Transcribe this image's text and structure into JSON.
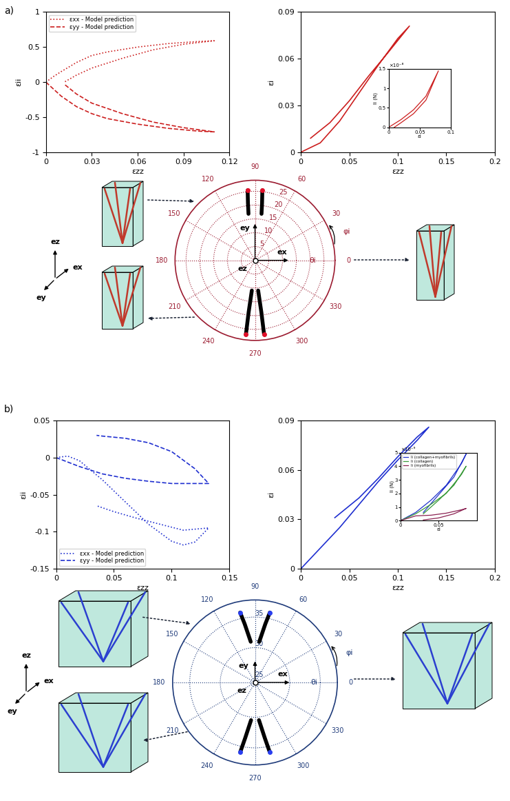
{
  "panel_labels": [
    "a)",
    "b)"
  ],
  "schematic": {
    "axis_labels": [
      "ex",
      "ey",
      "ez"
    ]
  },
  "chart_data": [
    {
      "type": "line",
      "xlabel": "εzz",
      "ylabel": "εii",
      "xlim": [
        0,
        0.12
      ],
      "xticks": [
        0,
        0.03,
        0.06,
        0.09,
        0.12
      ],
      "ylim": [
        -1,
        1
      ],
      "yticks": [
        -1,
        -0.5,
        0,
        0.5,
        1
      ],
      "legend": "upper left",
      "series": [
        {
          "name": "εxx - Model prediction",
          "color": "#cc1f1f",
          "line_style": "dotted",
          "x": [
            0,
            0.005,
            0.01,
            0.02,
            0.03,
            0.04,
            0.06,
            0.08,
            0.1,
            0.11,
            0.1,
            0.09,
            0.07,
            0.05,
            0.03,
            0.02,
            0.012
          ],
          "values": [
            0,
            0.08,
            0.15,
            0.28,
            0.38,
            0.43,
            0.5,
            0.55,
            0.58,
            0.59,
            0.565,
            0.54,
            0.46,
            0.34,
            0.2,
            0.1,
            0
          ]
        },
        {
          "name": "εyy - Model prediction",
          "color": "#cc1f1f",
          "line_style": "dashed",
          "x": [
            0,
            0.005,
            0.01,
            0.02,
            0.03,
            0.04,
            0.06,
            0.08,
            0.1,
            0.11,
            0.1,
            0.09,
            0.07,
            0.05,
            0.03,
            0.02,
            0.012
          ],
          "values": [
            0,
            -0.1,
            -0.2,
            -0.35,
            -0.45,
            -0.52,
            -0.6,
            -0.66,
            -0.7,
            -0.71,
            -0.68,
            -0.65,
            -0.57,
            -0.45,
            -0.3,
            -0.17,
            -0.03
          ]
        }
      ]
    },
    {
      "type": "line",
      "xlabel": "εzz",
      "ylabel": "εi",
      "xlim": [
        0,
        0.2
      ],
      "xticks": [
        0,
        0.05,
        0.1,
        0.15,
        0.2
      ],
      "ylim": [
        0,
        0.09
      ],
      "yticks": [
        0,
        0.03,
        0.06,
        0.09
      ],
      "series": [
        {
          "color": "#cc1f1f",
          "line_style": "solid",
          "x": [
            0,
            0.02,
            0.04,
            0.06,
            0.08,
            0.1,
            0.112,
            0.09,
            0.07,
            0.05,
            0.03,
            0.01
          ],
          "values": [
            0,
            0.006,
            0.02,
            0.038,
            0.056,
            0.073,
            0.081,
            0.064,
            0.049,
            0.033,
            0.019,
            0.009
          ]
        }
      ]
    },
    {
      "type": "line",
      "xlabel": "εi",
      "ylabel": "li (N)",
      "y_offset_label": "×10⁻⁸",
      "xlim": [
        0,
        0.1
      ],
      "xticks": [
        0,
        0.05,
        0.1
      ],
      "ylim": [
        0,
        1.5e-08
      ],
      "yticks": [
        0,
        {
          "value": 5e-09,
          "label": "0.5"
        },
        {
          "value": 1e-08,
          "label": "1"
        },
        {
          "value": 1.5e-08,
          "label": "1.5"
        }
      ],
      "series": [
        {
          "color": "#cc1f1f",
          "line_style": "solid",
          "x": [
            0,
            0.02,
            0.04,
            0.06,
            0.08,
            0.06,
            0.04,
            0.02,
            0.009
          ],
          "values": [
            0,
            2e-09,
            4.5e-09,
            8e-09,
            1.45e-08,
            7e-09,
            3.5e-09,
            1.2e-09,
            0
          ]
        }
      ]
    },
    {
      "type": "polar",
      "color": "#9b1b30",
      "grid": true,
      "xticks": [
        0,
        30,
        60,
        90,
        120,
        150,
        180,
        210,
        240,
        270,
        300,
        330
      ],
      "ylim": [
        0,
        29
      ],
      "yticks": [
        5,
        10,
        15,
        20,
        25
      ],
      "annotations": [
        "ey",
        "ex",
        "ez",
        "θi",
        "φi"
      ],
      "series": [
        {
          "type": "line",
          "color": "#000000",
          "line_style": "solid",
          "x": [
            98,
            97,
            96
          ],
          "values": [
            17,
            21,
            25.5
          ]
        },
        {
          "type": "line",
          "color": "#000000",
          "line_style": "solid",
          "x": [
            82,
            83,
            84
          ],
          "values": [
            17,
            21,
            25.5
          ]
        },
        {
          "type": "line",
          "color": "#000000",
          "line_style": "solid",
          "x": [
            264,
            263,
            263
          ],
          "values": [
            11,
            19,
            27
          ]
        },
        {
          "type": "line",
          "color": "#000000",
          "line_style": "solid",
          "x": [
            276,
            277,
            277
          ],
          "values": [
            11,
            19,
            27
          ]
        },
        {
          "type": "scatter",
          "color": "#e0102a",
          "marker": "o",
          "x": [
            96,
            84,
            263,
            277
          ],
          "values": [
            25.5,
            25.5,
            27,
            27
          ]
        }
      ]
    },
    {
      "type": "line",
      "xlabel": "εzz",
      "ylabel": "εii",
      "xlim": [
        0,
        0.15
      ],
      "xticks": [
        0,
        0.05,
        0.1,
        0.15
      ],
      "ylim": [
        -0.15,
        0.05
      ],
      "yticks": [
        -0.15,
        -0.1,
        -0.05,
        0,
        0.05
      ],
      "legend": "lower left",
      "series": [
        {
          "name": "εxx - Model prediction",
          "color": "#1f2fd0",
          "line_style": "dotted",
          "x": [
            0,
            0.01,
            0.02,
            0.04,
            0.06,
            0.08,
            0.1,
            0.11,
            0.12,
            0.132,
            0.11,
            0.09,
            0.07,
            0.05,
            0.035
          ],
          "values": [
            0,
            0.002,
            -0.004,
            -0.03,
            -0.06,
            -0.09,
            -0.113,
            -0.118,
            -0.114,
            -0.095,
            -0.098,
            -0.09,
            -0.082,
            -0.073,
            -0.065
          ]
        },
        {
          "name": "εyy - Model prediction",
          "color": "#1f2fd0",
          "line_style": "dashed",
          "x": [
            0,
            0.02,
            0.04,
            0.06,
            0.08,
            0.1,
            0.132,
            0.12,
            0.1,
            0.08,
            0.06,
            0.04,
            0.035
          ],
          "values": [
            0,
            -0.012,
            -0.022,
            -0.028,
            -0.032,
            -0.035,
            -0.035,
            -0.015,
            0.008,
            0.02,
            0.026,
            0.029,
            0.03
          ]
        }
      ]
    },
    {
      "type": "line",
      "xlabel": "εzz",
      "ylabel": "εi",
      "xlim": [
        0,
        0.2
      ],
      "xticks": [
        0,
        0.05,
        0.1,
        0.15,
        0.2
      ],
      "ylim": [
        0,
        0.09
      ],
      "yticks": [
        0,
        0.03,
        0.06,
        0.09
      ],
      "series": [
        {
          "color": "#1f2fd0",
          "line_style": "solid",
          "x": [
            0,
            0.04,
            0.08,
            0.1,
            0.12,
            0.132,
            0.12,
            0.1,
            0.08,
            0.06,
            0.035
          ],
          "values": [
            0,
            0.025,
            0.053,
            0.066,
            0.078,
            0.086,
            0.08,
            0.068,
            0.055,
            0.043,
            0.031
          ]
        }
      ]
    },
    {
      "type": "line",
      "xlabel": "εi",
      "ylabel": "li (N)",
      "y_offset_label": "×10⁻⁹",
      "xlim": [
        0,
        0.1
      ],
      "xticks": [
        0,
        0.05
      ],
      "ylim": [
        0,
        5e-09
      ],
      "yticks": [
        0,
        {
          "value": 1e-09,
          "label": "1"
        },
        {
          "value": 2e-09,
          "label": "2"
        },
        {
          "value": 3e-09,
          "label": "3"
        },
        {
          "value": 4e-09,
          "label": "4"
        },
        {
          "value": 5e-09,
          "label": "5"
        }
      ],
      "legend": "upper left",
      "series": [
        {
          "name": "li (collagen+myofibrils)",
          "color": "#2233cc",
          "line_style": "solid",
          "x": [
            0,
            0.02,
            0.04,
            0.06,
            0.08,
            0.086,
            0.07,
            0.05,
            0.03
          ],
          "values": [
            0,
            6e-10,
            1.5e-09,
            2.6e-09,
            4.2e-09,
            4.9e-09,
            3.2e-09,
            1.9e-09,
            6e-10
          ]
        },
        {
          "name": "li (collagen)",
          "color": "#3a9a3a",
          "line_style": "solid",
          "x": [
            0,
            0.02,
            0.04,
            0.06,
            0.08,
            0.086,
            0.07,
            0.05,
            0.03
          ],
          "values": [
            0,
            5e-10,
            1.2e-09,
            2e-09,
            3.4e-09,
            4e-09,
            2.6e-09,
            1.5e-09,
            5e-10
          ]
        },
        {
          "name": "li (myofibrils)",
          "color": "#8b2252",
          "line_style": "solid",
          "x": [
            0,
            0.02,
            0.04,
            0.06,
            0.08,
            0.086,
            0.07,
            0.05,
            0.03
          ],
          "values": [
            0,
            3.5e-10,
            4e-10,
            5.5e-10,
            8e-10,
            9e-10,
            5e-10,
            2e-10,
            5e-11
          ]
        }
      ]
    },
    {
      "type": "polar",
      "color": "#1f3b7a",
      "grid": true,
      "xticks": [
        0,
        30,
        60,
        90,
        120,
        150,
        180,
        210,
        240,
        270,
        300,
        330
      ],
      "ylim": [
        24.3,
        37.8
      ],
      "yticks": [
        25,
        30,
        35
      ],
      "annotations": [
        "ey",
        "ex",
        "ez",
        "θi",
        "φi"
      ],
      "series": [
        {
          "type": "line",
          "color": "#000000",
          "line_style": "solid",
          "x": [
            84,
            80,
            78
          ],
          "values": [
            31,
            34,
            36
          ]
        },
        {
          "type": "line",
          "color": "#000000",
          "line_style": "solid",
          "x": [
            96,
            100,
            102
          ],
          "values": [
            31,
            34,
            36
          ]
        },
        {
          "type": "line",
          "color": "#000000",
          "line_style": "solid",
          "x": [
            264,
            260,
            258
          ],
          "values": [
            30.5,
            33.5,
            36
          ]
        },
        {
          "type": "line",
          "color": "#000000",
          "line_style": "solid",
          "x": [
            276,
            280,
            282
          ],
          "values": [
            30.5,
            33.5,
            36
          ]
        },
        {
          "type": "scatter",
          "color": "#2a3ff0",
          "marker": "o",
          "x": [
            78,
            102,
            258,
            282
          ],
          "values": [
            36,
            36,
            36,
            36
          ]
        }
      ]
    }
  ]
}
